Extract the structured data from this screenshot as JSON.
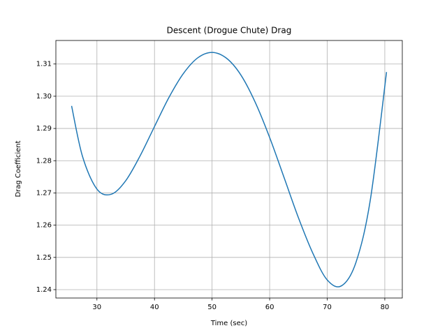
{
  "chart_data": {
    "type": "line",
    "title": "Descent (Drogue Chute) Drag",
    "x_label": "Time (sec)",
    "y_label": "Drag Coefficient",
    "x": [
      25.6,
      27.5,
      30,
      32.5,
      35,
      37.5,
      40,
      42.5,
      45,
      47.5,
      50,
      52.5,
      55,
      57.5,
      60,
      62.5,
      65,
      67.5,
      70,
      72.5,
      75,
      77.5,
      80.3
    ],
    "series": [
      {
        "name": "Drag Coefficient",
        "color": "#1f77b4",
        "values": [
          1.297,
          1.2813,
          1.2712,
          1.2696,
          1.2738,
          1.2815,
          1.2906,
          1.2996,
          1.307,
          1.3119,
          1.3136,
          1.3118,
          1.3066,
          1.2981,
          1.2872,
          1.2748,
          1.2623,
          1.2513,
          1.243,
          1.2412,
          1.2485,
          1.268,
          1.3075
        ]
      }
    ],
    "xlim": [
      22.87,
      83.04
    ],
    "xticks": [
      30,
      40,
      50,
      60,
      70,
      80
    ],
    "ylim": [
      1.2374,
      1.3173
    ],
    "yticks": [
      {
        "value": 1.24,
        "label": "1.24"
      },
      {
        "value": 1.25,
        "label": "1.25"
      },
      {
        "value": 1.26,
        "label": "1.26"
      },
      {
        "value": 1.27,
        "label": "1.27"
      },
      {
        "value": 1.28,
        "label": "1.28"
      },
      {
        "value": 1.29,
        "label": "1.29"
      },
      {
        "value": 1.3,
        "label": "1.30"
      },
      {
        "value": 1.31,
        "label": "1.31"
      }
    ],
    "grid": true
  }
}
